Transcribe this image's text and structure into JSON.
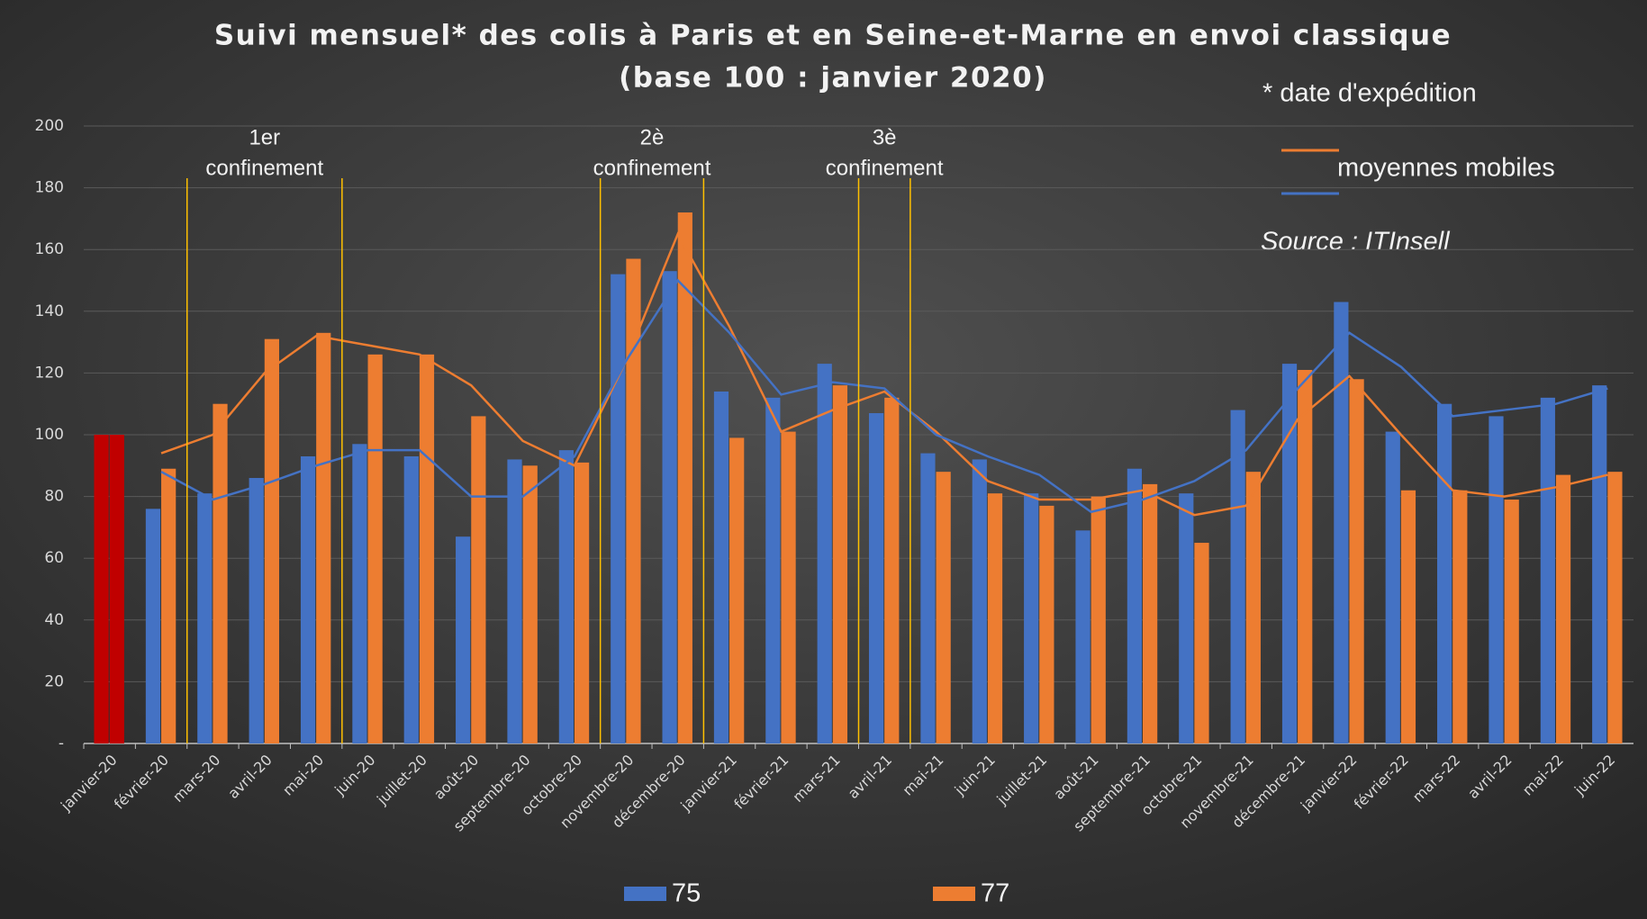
{
  "chart_data": {
    "type": "bar",
    "title": [
      "Suivi mensuel* des colis à Paris et en Seine-et-Marne en envoi classique",
      "(base 100 : janvier 2020)"
    ],
    "footnote": "* date d'expédition",
    "source": "Source : ITInsell",
    "categories": [
      "janvier-20",
      "février-20",
      "mars-20",
      "avril-20",
      "mai-20",
      "juin-20",
      "juillet-20",
      "août-20",
      "septembre-20",
      "octobre-20",
      "novembre-20",
      "décembre-20",
      "janvier-21",
      "février-21",
      "mars-21",
      "avril-21",
      "mai-21",
      "juin-21",
      "juillet-21",
      "août-21",
      "septembre-21",
      "octobre-21",
      "novembre-21",
      "décembre-21",
      "janvier-22",
      "février-22",
      "mars-22",
      "avril-22",
      "mai-22",
      "juin-22"
    ],
    "series": [
      {
        "name": "75",
        "color": "#4472c4",
        "values": [
          100,
          76,
          81,
          86,
          93,
          97,
          93,
          67,
          92,
          95,
          152,
          153,
          114,
          112,
          123,
          107,
          94,
          92,
          81,
          69,
          89,
          81,
          108,
          123,
          143,
          101,
          110,
          106,
          112,
          116
        ]
      },
      {
        "name": "77",
        "color": "#ed7d31",
        "values": [
          100,
          89,
          110,
          131,
          133,
          126,
          126,
          106,
          90,
          91,
          157,
          172,
          99,
          101,
          116,
          112,
          88,
          81,
          77,
          80,
          84,
          65,
          88,
          121,
          118,
          82,
          82,
          79,
          87,
          88
        ]
      }
    ],
    "highlight": {
      "index": 0,
      "color": "#c00000"
    },
    "moving_averages": {
      "label": "moyennes mobiles",
      "series": [
        {
          "color": "#ed7d31",
          "values": [
            null,
            94,
            100,
            120,
            132,
            129,
            126,
            116,
            98,
            90,
            124,
            165,
            135,
            101,
            108,
            114,
            101,
            85,
            79,
            79,
            82,
            74,
            77,
            105,
            119,
            100,
            82,
            80,
            83,
            87
          ]
        },
        {
          "color": "#4472c4",
          "values": [
            null,
            88,
            79,
            84,
            90,
            95,
            95,
            80,
            80,
            93,
            124,
            150,
            133,
            113,
            117,
            115,
            100,
            93,
            87,
            75,
            79,
            85,
            95,
            115,
            133,
            122,
            106,
            108,
            110,
            115
          ]
        }
      ]
    },
    "annotations": [
      {
        "text": [
          "1er",
          "confinement"
        ],
        "span": [
          2,
          4
        ]
      },
      {
        "text": [
          "2è",
          "confinement"
        ],
        "span": [
          10,
          11
        ]
      },
      {
        "text": [
          "3è",
          "confinement"
        ],
        "span": [
          15,
          15
        ]
      }
    ],
    "annotation_color": "#ffc000",
    "ylim": [
      0,
      200
    ],
    "yticks": [
      {
        "value": 0,
        "label": "-"
      },
      20,
      40,
      60,
      80,
      100,
      120,
      140,
      160,
      180,
      200
    ],
    "grid": true
  }
}
